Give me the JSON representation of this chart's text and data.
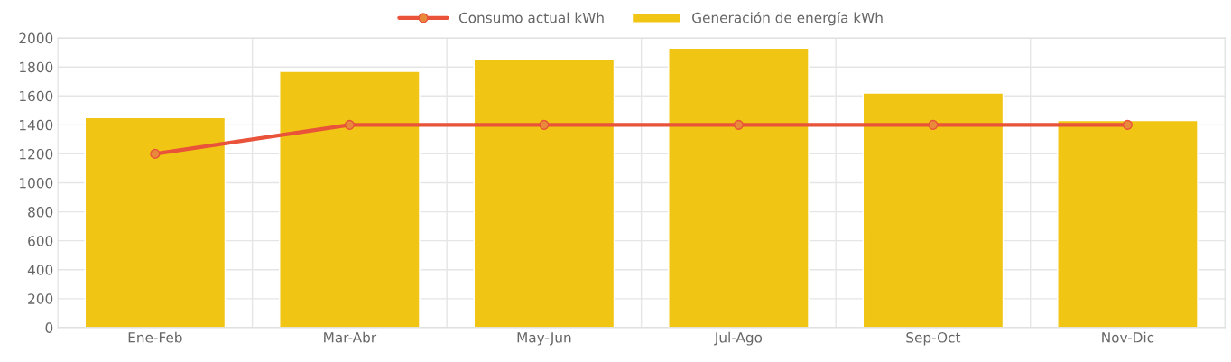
{
  "chart_data": {
    "type": "bar",
    "categories": [
      "Ene-Feb",
      "Mar-Abr",
      "May-Jun",
      "Jul-Ago",
      "Sep-Oct",
      "Nov-Dic"
    ],
    "series": [
      {
        "name": "Consumo actual kWh",
        "type": "line",
        "color": "#e8533a",
        "values": [
          1200,
          1400,
          1400,
          1400,
          1400,
          1400
        ]
      },
      {
        "name": "Generación de energía kWh",
        "color": "#f0c514",
        "values": [
          1450,
          1770,
          1850,
          1930,
          1620,
          1430
        ]
      }
    ],
    "ylim": [
      0,
      2000
    ],
    "yticks": [
      0,
      200,
      400,
      600,
      800,
      1000,
      1200,
      1400,
      1600,
      1800,
      2000
    ],
    "grid": true,
    "legend": "top",
    "marker": "circle",
    "line_style": "solid"
  }
}
